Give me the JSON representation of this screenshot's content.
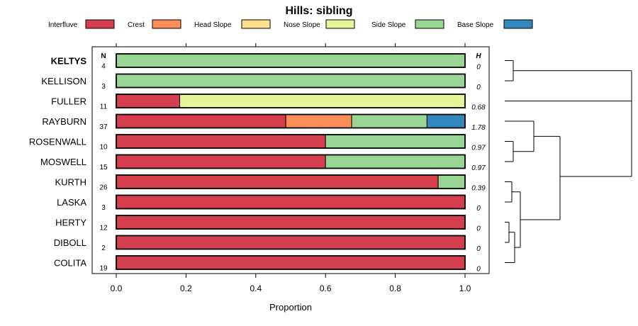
{
  "chart_data": {
    "type": "bar",
    "stacked": true,
    "orientation": "horizontal",
    "title": "Hills: sibling",
    "xlabel": "Proportion",
    "xlim": [
      0,
      1
    ],
    "xticks": [
      "0.0",
      "0.2",
      "0.4",
      "0.6",
      "0.8",
      "1.0"
    ],
    "n_header": "N",
    "h_header": "H",
    "legend": [
      {
        "name": "Interfluve",
        "color": "#D53E4F"
      },
      {
        "name": "Crest",
        "color": "#FC8D59"
      },
      {
        "name": "Head Slope",
        "color": "#FEE08B"
      },
      {
        "name": "Nose Slope",
        "color": "#E6F598"
      },
      {
        "name": "Side Slope",
        "color": "#99D594"
      },
      {
        "name": "Base Slope",
        "color": "#3288BD"
      }
    ],
    "categories": [
      {
        "label": "KELTYS",
        "bold": true,
        "n": "4",
        "h": "0",
        "values": [
          0,
          0,
          0,
          0,
          1,
          0
        ]
      },
      {
        "label": "KELLISON",
        "bold": false,
        "n": "3",
        "h": "0",
        "values": [
          0,
          0,
          0,
          0,
          1,
          0
        ]
      },
      {
        "label": "FULLER",
        "bold": false,
        "n": "11",
        "h": "0.68",
        "values": [
          0.182,
          0,
          0,
          0.818,
          0,
          0
        ]
      },
      {
        "label": "RAYBURN",
        "bold": false,
        "n": "37",
        "h": "1.78",
        "values": [
          0.486,
          0.189,
          0,
          0,
          0.216,
          0.108
        ]
      },
      {
        "label": "ROSENWALL",
        "bold": false,
        "n": "10",
        "h": "0.97",
        "values": [
          0.6,
          0,
          0,
          0,
          0.4,
          0
        ]
      },
      {
        "label": "MOSWELL",
        "bold": false,
        "n": "15",
        "h": "0.97",
        "values": [
          0.6,
          0,
          0,
          0,
          0.4,
          0
        ]
      },
      {
        "label": "KURTH",
        "bold": false,
        "n": "26",
        "h": "0.39",
        "values": [
          0.923,
          0,
          0,
          0,
          0.077,
          0
        ]
      },
      {
        "label": "LASKA",
        "bold": false,
        "n": "3",
        "h": "0",
        "values": [
          1,
          0,
          0,
          0,
          0,
          0
        ]
      },
      {
        "label": "HERTY",
        "bold": false,
        "n": "12",
        "h": "0",
        "values": [
          1,
          0,
          0,
          0,
          0,
          0
        ]
      },
      {
        "label": "DIBOLL",
        "bold": false,
        "n": "2",
        "h": "0",
        "values": [
          1,
          0,
          0,
          0,
          0,
          0
        ]
      },
      {
        "label": "COLITA",
        "bold": false,
        "n": "19",
        "h": "0",
        "values": [
          1,
          0,
          0,
          0,
          0,
          0
        ]
      }
    ]
  }
}
